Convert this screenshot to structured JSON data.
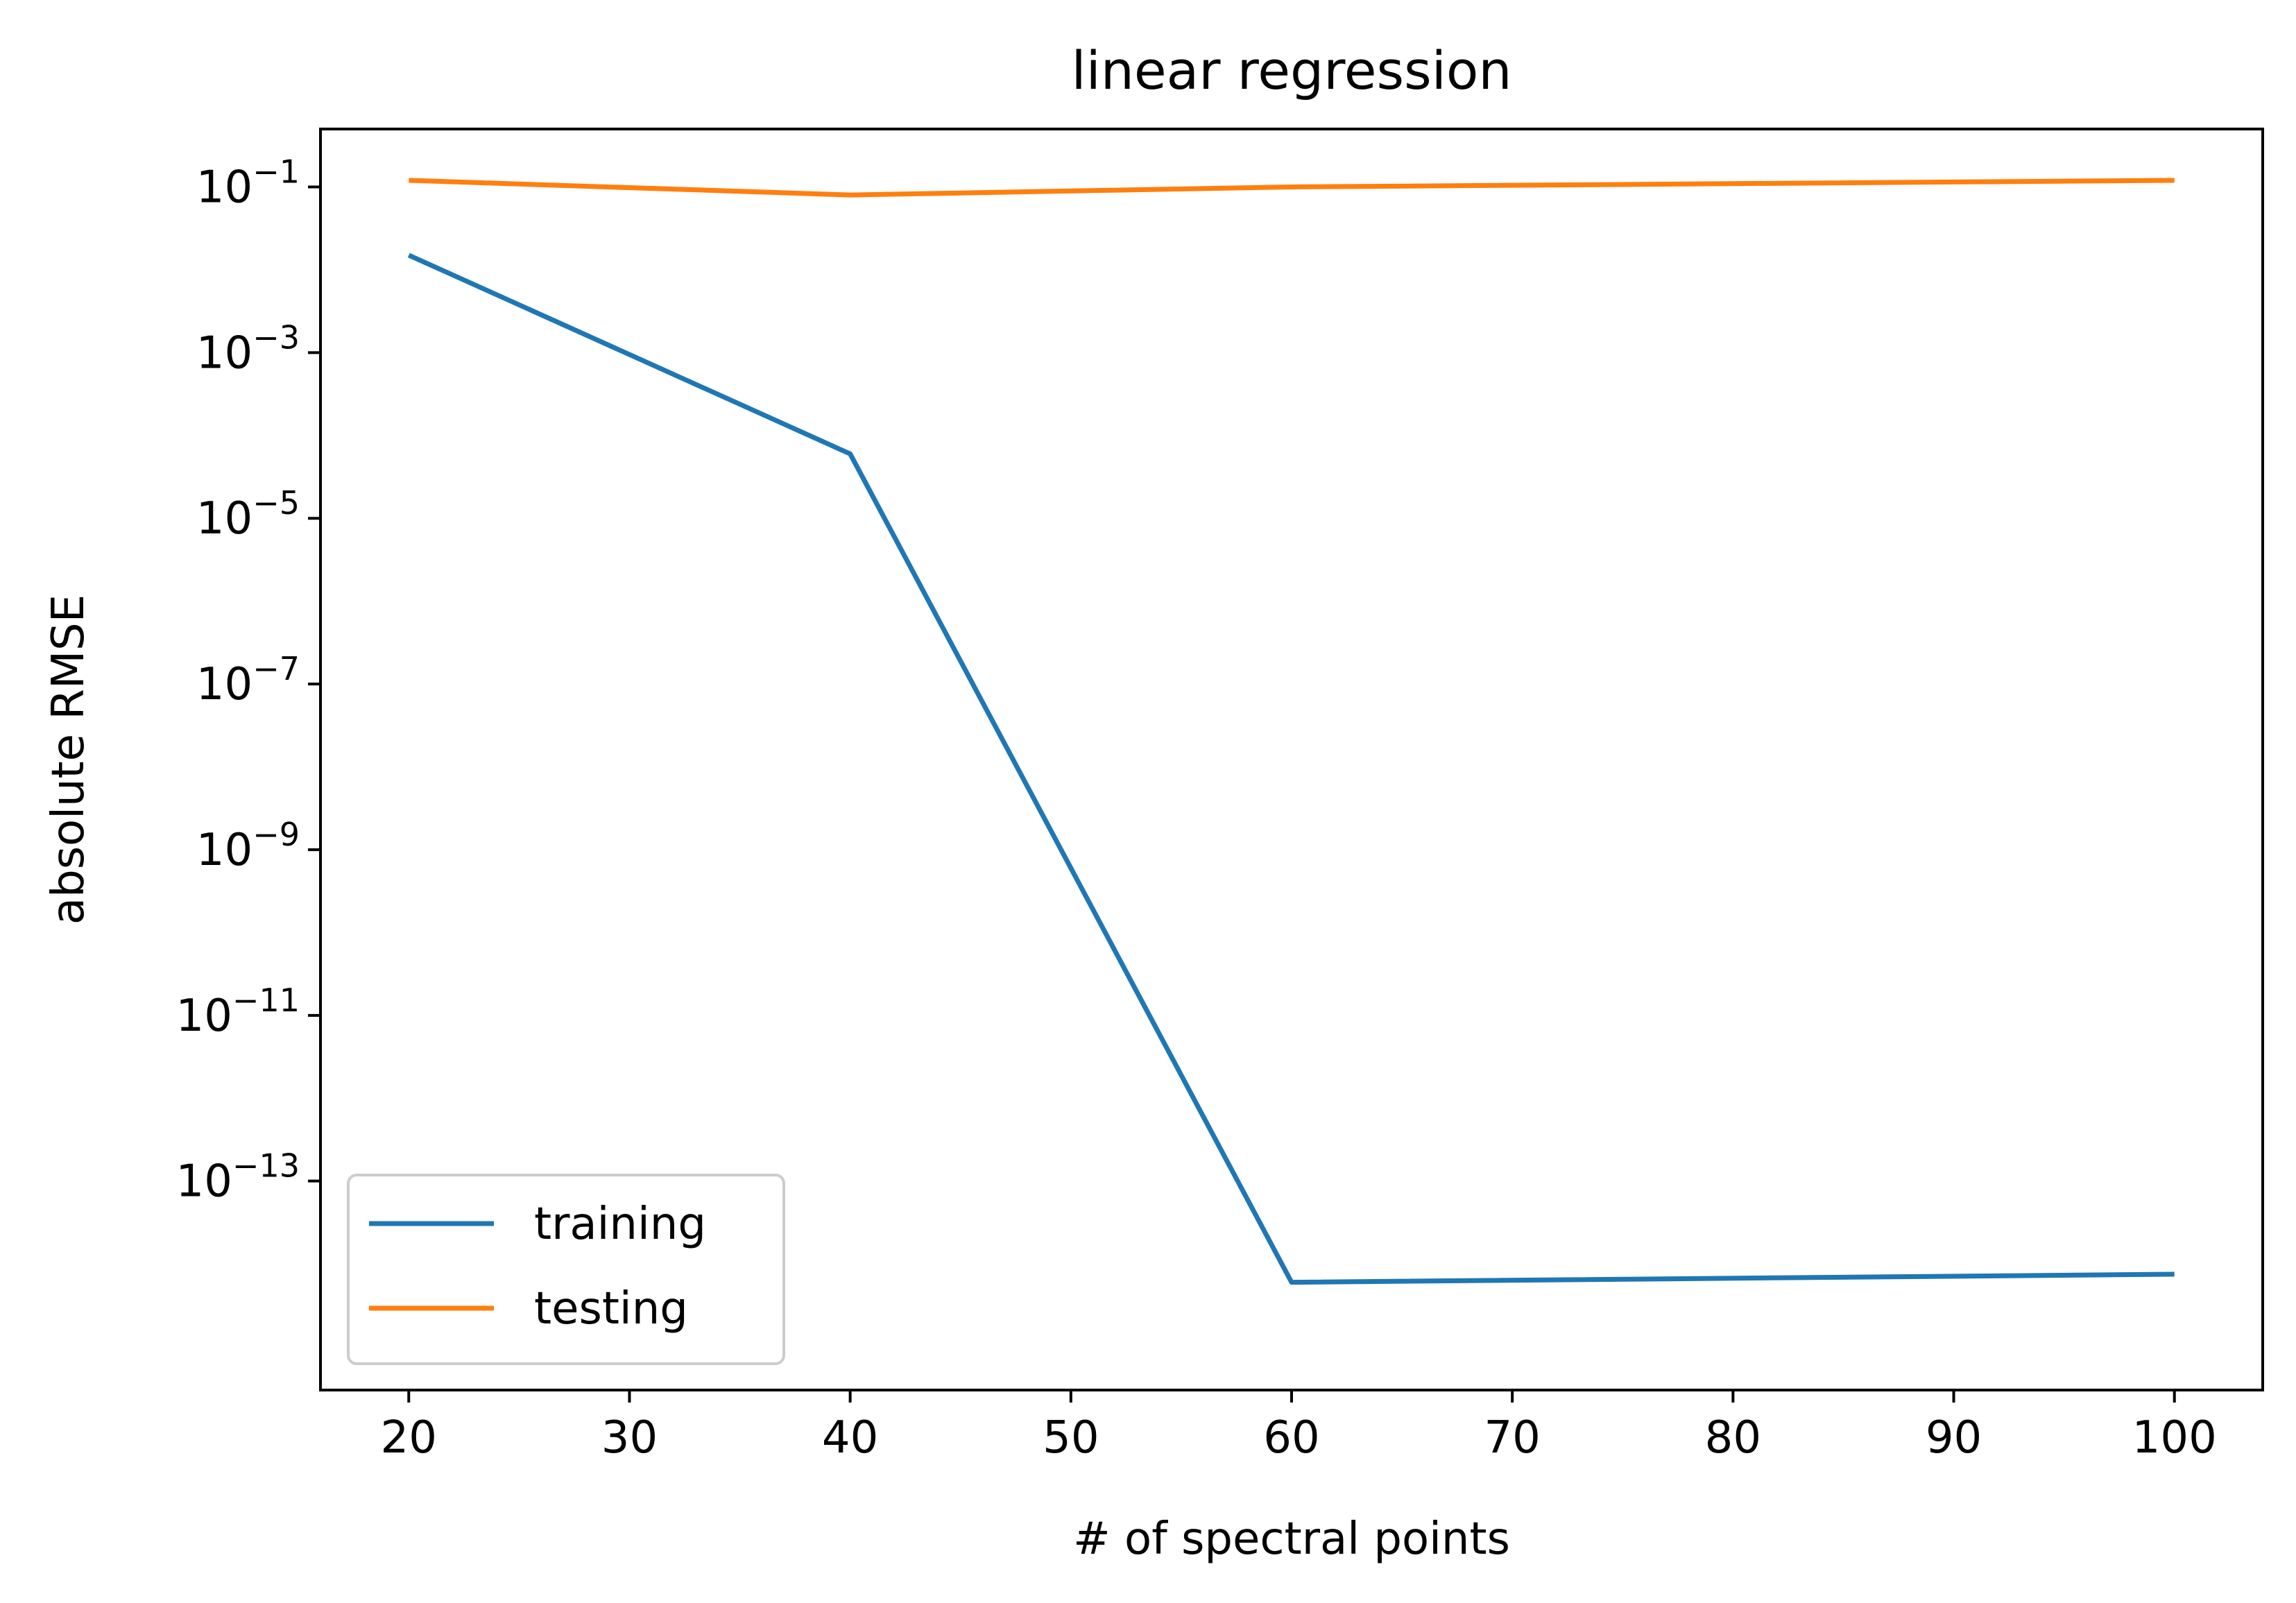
{
  "chart_data": {
    "type": "line",
    "title": "linear regression",
    "xlabel": "# of spectral points",
    "ylabel": "absolute RMSE",
    "xlim": [
      16,
      104
    ],
    "ylim": [
      3e-16,
      0.5
    ],
    "yscale": "log",
    "x_ticks": [
      20,
      30,
      40,
      50,
      60,
      70,
      80,
      90,
      100
    ],
    "y_tick_values": [
      0.1,
      0.001,
      1e-05,
      1e-07,
      1e-09,
      1e-11,
      1e-13
    ],
    "y_tick_mantissa": [
      "10",
      "10",
      "10",
      "10",
      "10",
      "10",
      "10"
    ],
    "y_tick_exponents": [
      "−1",
      "−3",
      "−5",
      "−7",
      "−9",
      "−11",
      "−13"
    ],
    "x": [
      20,
      40,
      60,
      100
    ],
    "series": [
      {
        "name": "training",
        "color": "#1f77b4",
        "values": [
          0.015,
          6e-05,
          6e-15,
          7.5e-15
        ]
      },
      {
        "name": "testing",
        "color": "#ff7f0e",
        "values": [
          0.12,
          0.08,
          0.1,
          0.12
        ]
      }
    ],
    "grid": false,
    "legend_position": "bottom-left"
  }
}
